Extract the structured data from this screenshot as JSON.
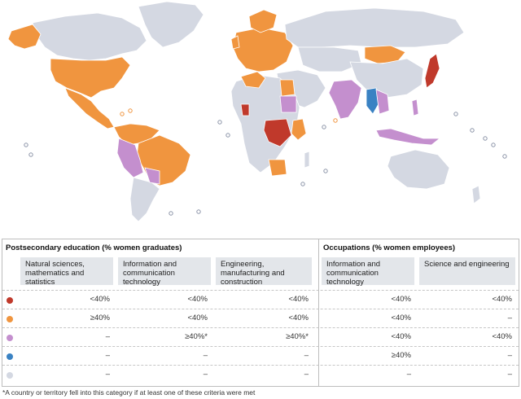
{
  "colors": {
    "red": "#c0392b",
    "orange": "#f0953f",
    "purple": "#c48fce",
    "blue": "#3a82c3",
    "grey": "#d4d8e2",
    "ocean": "#ffffff"
  },
  "legend": {
    "group_education": "Postsecondary education (% women graduates)",
    "group_occupations": "Occupations (% women employees)",
    "columns": [
      "Natural sciences, mathematics and statistics",
      "Information and communication technology",
      "Engineering, manufacturing and construction",
      "Information and communication technology",
      "Science and engineering"
    ],
    "rows": [
      {
        "color": "red",
        "cells": [
          "<40%",
          "<40%",
          "<40%",
          "<40%",
          "<40%"
        ]
      },
      {
        "color": "orange",
        "cells": [
          "≥40%",
          "<40%",
          "<40%",
          "<40%",
          "–"
        ]
      },
      {
        "color": "purple",
        "cells": [
          "–",
          "≥40%*",
          "≥40%*",
          "<40%",
          "<40%"
        ]
      },
      {
        "color": "blue",
        "cells": [
          "–",
          "–",
          "–",
          "≥40%",
          "–"
        ]
      },
      {
        "color": "grey",
        "cells": [
          "–",
          "–",
          "–",
          "–",
          "–"
        ]
      }
    ]
  },
  "footnote": "*A country or territory fell into this category if at least one of these criteria were met"
}
